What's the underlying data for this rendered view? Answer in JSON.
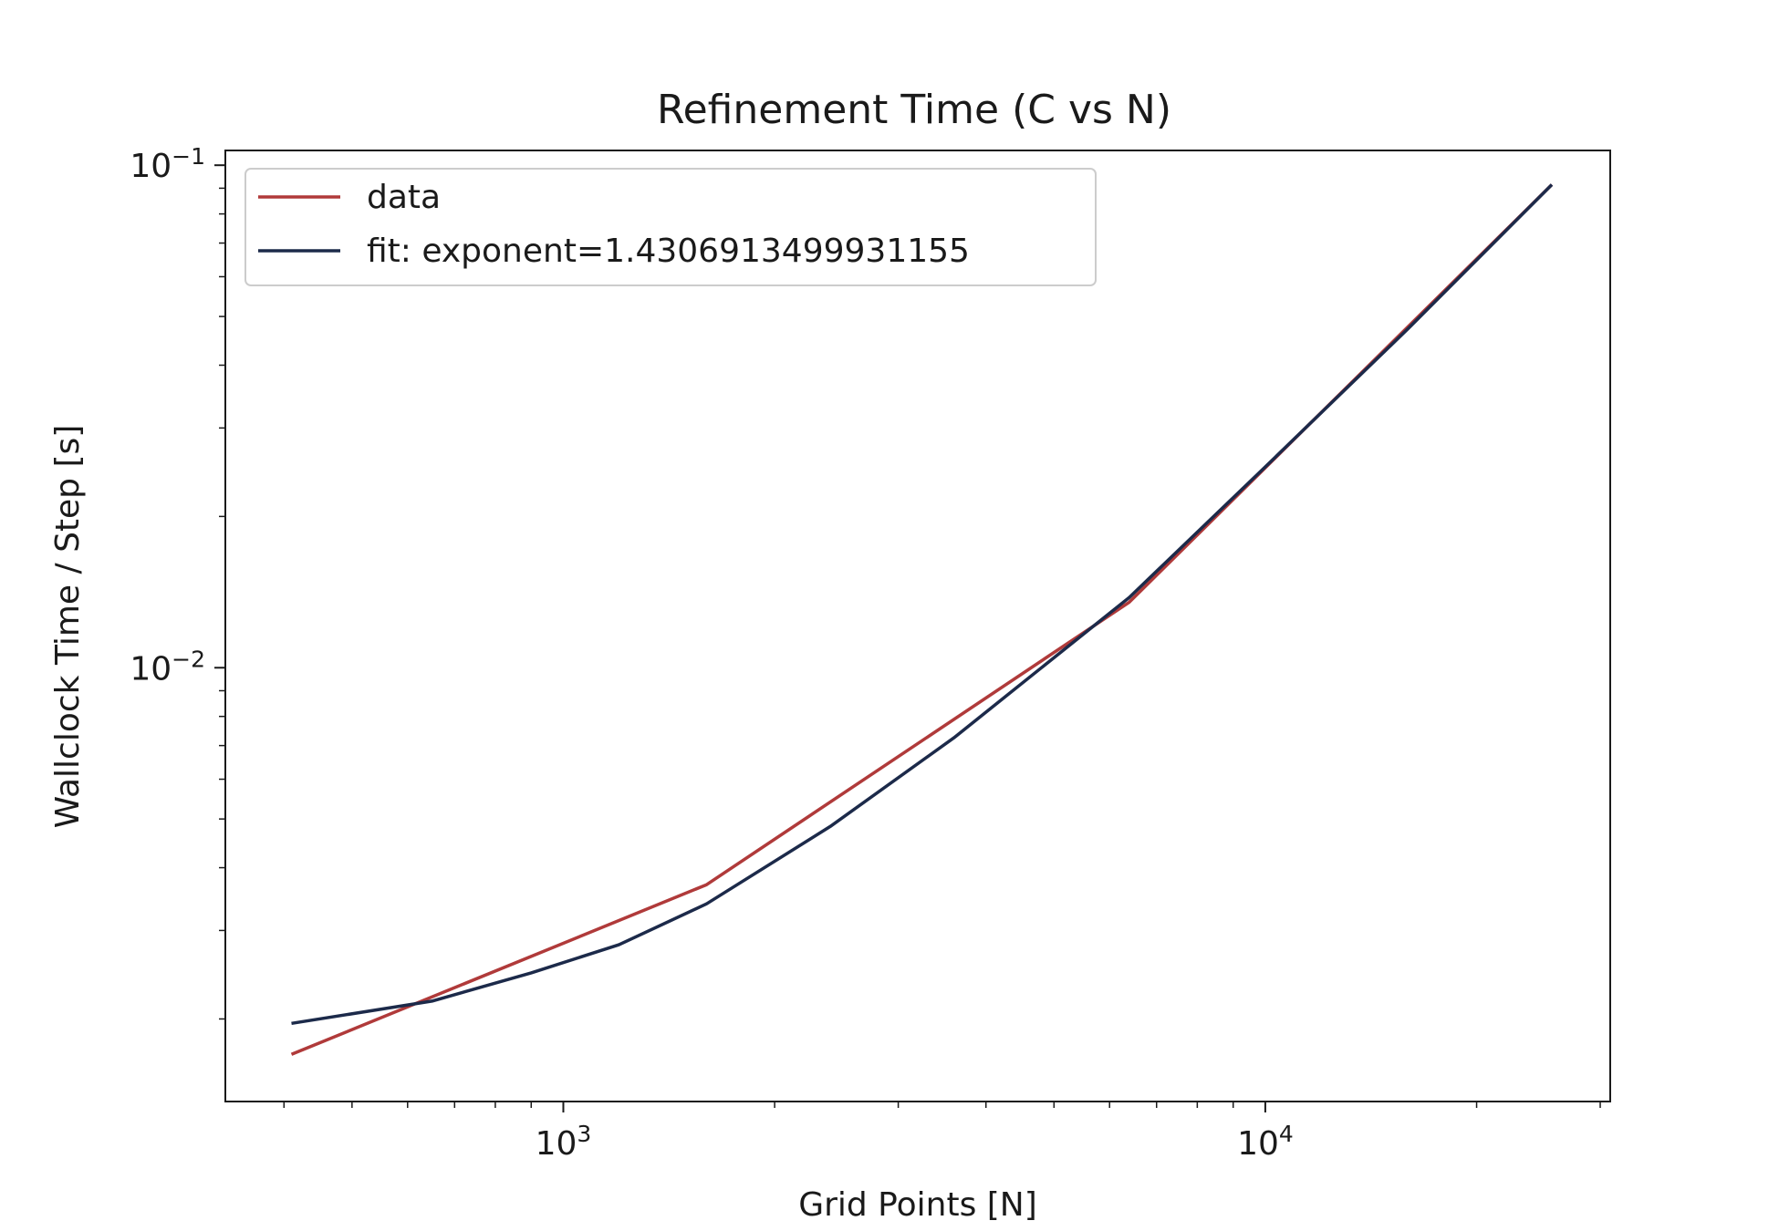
{
  "chart_data": {
    "type": "line",
    "title": "Refinement Time (C vs N)",
    "xlabel": "Grid Points [N]",
    "ylabel": "Wallclock Time / Step [s]",
    "xscale": "log",
    "yscale": "log",
    "xlim": [
      330,
      31000
    ],
    "ylim": [
      0.00137,
      0.107
    ],
    "x_ticks": [
      {
        "value": 1000,
        "base": "10",
        "exp": "3"
      },
      {
        "value": 10000,
        "base": "10",
        "exp": "4"
      }
    ],
    "y_ticks": [
      {
        "value": 0.01,
        "base": "10",
        "exp": "−2"
      },
      {
        "value": 0.1,
        "base": "10",
        "exp": "−1"
      }
    ],
    "grid": false,
    "legend_position": "top-left",
    "series": [
      {
        "name": "data",
        "color": "#b03a3a",
        "x": [
          410,
          1600,
          6400,
          25600
        ],
        "y": [
          0.0017,
          0.0037,
          0.0135,
          0.0915
        ]
      },
      {
        "name": "fit: exponent=1.4306913499931155",
        "color": "#1c2a4a",
        "x": [
          410,
          650,
          900,
          1200,
          1600,
          2400,
          3600,
          6400,
          10000,
          16000,
          25600
        ],
        "y": [
          0.00196,
          0.00217,
          0.00247,
          0.00281,
          0.00339,
          0.00483,
          0.00725,
          0.0138,
          0.0251,
          0.0474,
          0.0915
        ]
      }
    ]
  }
}
